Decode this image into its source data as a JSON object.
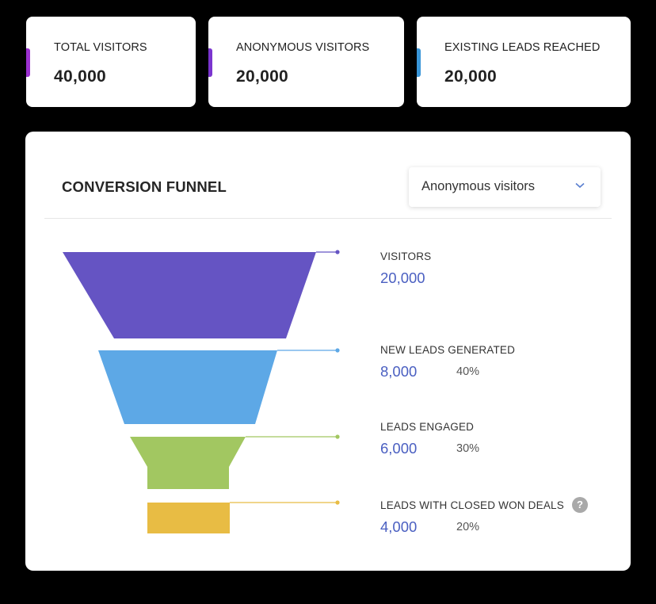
{
  "stats": [
    {
      "label": "TOTAL VISITORS",
      "value": "40,000",
      "accent_color": "#9b30d0"
    },
    {
      "label": "ANONYMOUS VISITORS",
      "value": "20,000",
      "accent_color": "#7b35cf"
    },
    {
      "label": "EXISTING LEADS REACHED",
      "value": "20,000",
      "accent_color": "#3a96d8"
    }
  ],
  "funnel": {
    "title": "CONVERSION FUNNEL",
    "filter": {
      "selected": "Anonymous visitors",
      "icon": "chevron-down-icon"
    },
    "help_icon": "question-mark-icon",
    "stages": [
      {
        "label": "VISITORS",
        "value": "20,000",
        "pct": "",
        "color": "#6554c3"
      },
      {
        "label": "NEW LEADS GENERATED",
        "value": "8,000",
        "pct": "40%",
        "color": "#5da8e6"
      },
      {
        "label": "LEADS ENGAGED",
        "value": "6,000",
        "pct": "30%",
        "color": "#a2c761"
      },
      {
        "label": "LEADS WITH CLOSED WON DEALS",
        "value": "4,000",
        "pct": "20%",
        "color": "#e8bc44"
      }
    ]
  },
  "chart_data": {
    "type": "funnel",
    "title": "CONVERSION FUNNEL",
    "categories": [
      "VISITORS",
      "NEW LEADS GENERATED",
      "LEADS ENGAGED",
      "LEADS WITH CLOSED WON DEALS"
    ],
    "values": [
      20000,
      8000,
      6000,
      4000
    ],
    "percentages": [
      null,
      40,
      30,
      20
    ]
  }
}
